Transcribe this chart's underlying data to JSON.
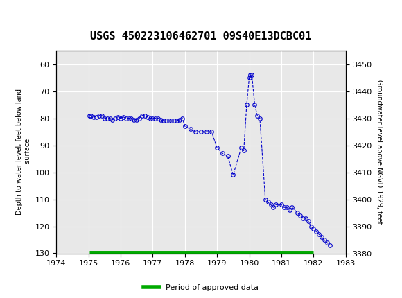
{
  "title": "USGS 450223106462701 09S40E13DCBC01",
  "ylabel_left": "Depth to water level, feet below land\n surface",
  "ylabel_right": "Groundwater level above NGVD 1929, feet",
  "xlabel": "",
  "xlim": [
    1974,
    1983
  ],
  "ylim_left": [
    130,
    55
  ],
  "ylim_right": [
    3380,
    3455
  ],
  "xticks": [
    1974,
    1975,
    1976,
    1977,
    1978,
    1979,
    1980,
    1981,
    1982,
    1983
  ],
  "yticks_left": [
    60,
    70,
    80,
    90,
    100,
    110,
    120,
    130
  ],
  "yticks_right": [
    3450,
    3440,
    3430,
    3420,
    3410,
    3400,
    3390,
    3380
  ],
  "bg_header": "#1a6b3c",
  "plot_bg": "#e8e8e8",
  "grid_color": "#ffffff",
  "data_color": "#0000cc",
  "approved_color": "#00aa00",
  "data_x": [
    1975.04,
    1975.08,
    1975.17,
    1975.25,
    1975.33,
    1975.42,
    1975.5,
    1975.58,
    1975.67,
    1975.75,
    1975.83,
    1975.92,
    1976.0,
    1976.08,
    1976.17,
    1976.25,
    1976.33,
    1976.42,
    1976.5,
    1976.58,
    1976.67,
    1976.75,
    1976.83,
    1976.92,
    1977.0,
    1977.08,
    1977.17,
    1977.25,
    1977.33,
    1977.42,
    1977.5,
    1977.58,
    1977.67,
    1977.75,
    1977.83,
    1977.92,
    1978.0,
    1978.17,
    1978.33,
    1978.5,
    1978.67,
    1978.83,
    1979.0,
    1979.17,
    1979.33,
    1979.5,
    1979.75,
    1979.83,
    1979.92,
    1980.0,
    1980.04,
    1980.08,
    1980.17,
    1980.25,
    1980.33,
    1980.5,
    1980.58,
    1980.67,
    1980.75,
    1980.83,
    1981.0,
    1981.08,
    1981.17,
    1981.25,
    1981.33,
    1981.5,
    1981.58,
    1981.67,
    1981.75,
    1981.83,
    1981.92,
    1982.0,
    1982.08,
    1982.17,
    1982.25,
    1982.33,
    1982.42,
    1982.5
  ],
  "data_y": [
    79,
    79,
    79.5,
    79.5,
    79,
    79,
    80,
    80,
    80,
    80.5,
    80,
    79.5,
    80,
    79.5,
    80,
    80,
    80,
    80.5,
    80.5,
    80,
    79,
    79,
    79.5,
    80,
    80,
    80,
    80,
    80.5,
    81,
    81,
    81,
    81,
    81,
    81,
    80.5,
    80,
    83,
    84,
    85,
    85,
    85,
    85,
    91,
    93,
    94,
    101,
    91,
    92,
    75,
    65,
    64,
    64,
    75,
    79,
    80,
    110,
    111,
    112,
    113,
    112,
    112,
    113,
    113,
    114,
    113,
    115,
    116,
    117,
    117,
    118,
    120,
    121,
    122,
    123,
    124,
    125,
    126,
    127
  ],
  "approved_bar_x": 1975.04,
  "approved_bar_x2": 1982.0,
  "approved_bar_y": 130
}
